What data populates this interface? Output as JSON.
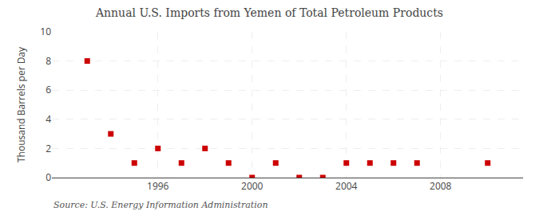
{
  "chart_data": {
    "type": "scatter",
    "title": "Annual U.S. Imports from Yemen of Total Petroleum Products",
    "y_label": "Thousand Barrels per Day",
    "annotations": [
      "Source: U.S. Energy Information Administration"
    ],
    "x": [
      1993,
      1994,
      1995,
      1996,
      1997,
      1998,
      1999,
      2000,
      2001,
      2002,
      2003,
      2004,
      2005,
      2006,
      2007,
      2010
    ],
    "values": [
      8,
      3,
      1,
      2,
      1,
      2,
      1,
      0,
      1,
      0,
      0,
      1,
      1,
      1,
      1,
      1
    ],
    "color": "#cc0000",
    "marker": "square",
    "xlim": [
      1991.5,
      2011.5
    ],
    "ylim": [
      0,
      10
    ],
    "xticks": [
      1996,
      2000,
      2004,
      2008
    ],
    "yticks": [
      0,
      2,
      4,
      6,
      8,
      10
    ],
    "grid": true
  }
}
